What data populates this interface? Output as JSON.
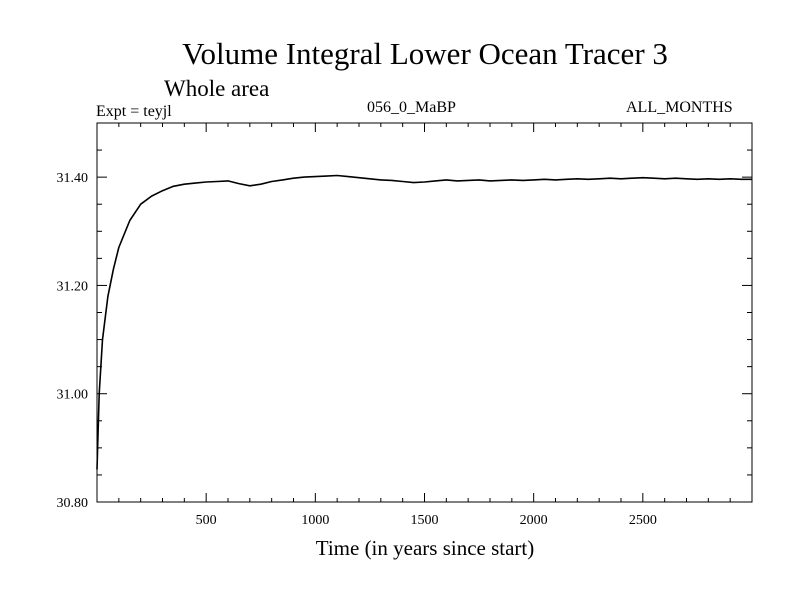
{
  "header": {
    "title": "Volume Integral Lower Ocean Tracer 3",
    "subtitle": "Whole area",
    "experiment": "Expt = teyjl",
    "period": "056_0_MaBP",
    "months": "ALL_MONTHS"
  },
  "chart_data": {
    "type": "line",
    "title": "Volume Integral Lower Ocean Tracer 3",
    "subtitle": "Whole area",
    "xlabel": "Time (in years since start)",
    "ylabel": "",
    "xlim": [
      0,
      3000
    ],
    "ylim": [
      30.8,
      31.5
    ],
    "xticks": [
      500,
      1000,
      1500,
      2000,
      2500
    ],
    "xtick_labels": [
      "500",
      "1000",
      "1500",
      "2000",
      "2500"
    ],
    "yticks": [
      30.8,
      31.0,
      31.2,
      31.4
    ],
    "ytick_labels": [
      "30.80",
      "31.00",
      "31.20",
      "31.40"
    ],
    "grid": false,
    "series": [
      {
        "name": "Lower Ocean Tracer 3",
        "x": [
          0,
          10,
          25,
          50,
          75,
          100,
          150,
          200,
          250,
          300,
          350,
          400,
          450,
          500,
          550,
          600,
          650,
          700,
          750,
          800,
          850,
          900,
          950,
          1000,
          1050,
          1100,
          1150,
          1200,
          1250,
          1300,
          1350,
          1400,
          1450,
          1500,
          1550,
          1600,
          1650,
          1700,
          1750,
          1800,
          1850,
          1900,
          1950,
          2000,
          2050,
          2100,
          2150,
          2200,
          2250,
          2300,
          2350,
          2400,
          2450,
          2500,
          2550,
          2600,
          2650,
          2700,
          2750,
          2800,
          2850,
          2900,
          2950,
          3000
        ],
        "values": [
          30.86,
          31.0,
          31.1,
          31.18,
          31.23,
          31.27,
          31.32,
          31.35,
          31.365,
          31.375,
          31.383,
          31.387,
          31.389,
          31.391,
          31.392,
          31.393,
          31.388,
          31.384,
          31.387,
          31.392,
          31.395,
          31.398,
          31.4,
          31.401,
          31.402,
          31.403,
          31.401,
          31.399,
          31.397,
          31.395,
          31.394,
          31.392,
          31.39,
          31.391,
          31.393,
          31.395,
          31.393,
          31.394,
          31.395,
          31.393,
          31.394,
          31.395,
          31.394,
          31.395,
          31.396,
          31.395,
          31.396,
          31.397,
          31.396,
          31.397,
          31.398,
          31.397,
          31.398,
          31.399,
          31.398,
          31.397,
          31.398,
          31.397,
          31.396,
          31.397,
          31.396,
          31.397,
          31.396,
          31.396
        ]
      }
    ]
  }
}
